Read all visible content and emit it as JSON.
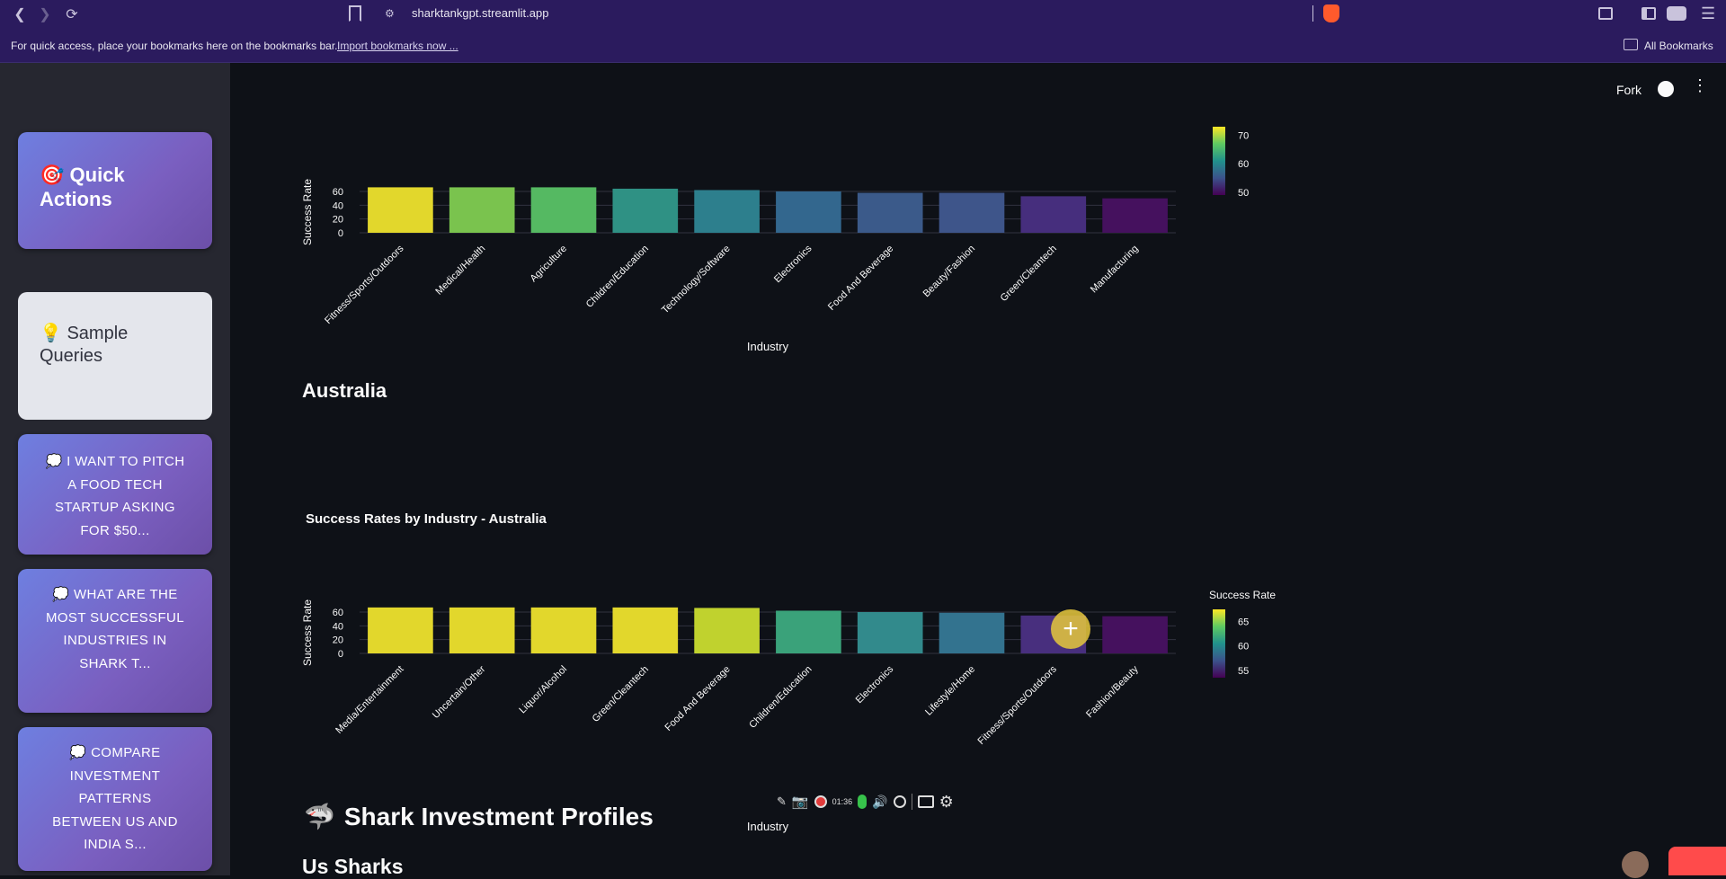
{
  "browser": {
    "url": "sharktankgpt.streamlit.app",
    "bookmarks_hint": "For quick access, place your bookmarks here on the bookmarks bar.",
    "import_link": "Import bookmarks now ...",
    "all_bookmarks": "All Bookmarks"
  },
  "app_header": {
    "fork": "Fork"
  },
  "sidebar": {
    "quick_actions": {
      "icon": "🎯",
      "label": "Quick Actions"
    },
    "sample_queries": {
      "icon": "💡",
      "label": "Sample Queries"
    },
    "queries": [
      {
        "icon": "💭",
        "text": "I WANT TO PITCH A FOOD TECH STARTUP ASKING FOR $50..."
      },
      {
        "icon": "💭",
        "text": "WHAT ARE THE MOST SUCCESSFUL INDUSTRIES IN SHARK T..."
      },
      {
        "icon": "💭",
        "text": "COMPARE INVESTMENT PATTERNS BETWEEN US AND INDIA S..."
      }
    ]
  },
  "sections": {
    "australia_heading": "Australia",
    "shark_profiles_icon": "🦈",
    "shark_profiles_heading": "Shark Investment Profiles",
    "us_sharks_heading": "Us Sharks"
  },
  "recorder": {
    "time": "01:36"
  },
  "chart_data": [
    {
      "type": "bar",
      "title": "",
      "xlabel": "Industry",
      "ylabel": "Success Rate",
      "categories": [
        "Fitness/Sports/Outdoors",
        "Medical/Health",
        "Agriculture",
        "Children/Education",
        "Technology/Software",
        "Electronics",
        "Food And Beverage",
        "Beauty/Fashion",
        "Green/Cleantech",
        "Manufacturing"
      ],
      "values": [
        66,
        66,
        66,
        64,
        62,
        60,
        58,
        58,
        53,
        50
      ],
      "yticks": [
        0,
        20,
        40,
        60
      ],
      "ylim": [
        0,
        70
      ],
      "colorbar": {
        "title": "",
        "ticks": [
          50,
          60,
          70
        ],
        "range": [
          49,
          73
        ]
      },
      "colors": [
        "#e2d72c",
        "#7ac34e",
        "#55b962",
        "#2f9184",
        "#2d7f8d",
        "#33678e",
        "#3b5a8a",
        "#3e558a",
        "#462e7d",
        "#45115e"
      ]
    },
    {
      "type": "bar",
      "title": "Success Rates by Industry - Australia",
      "xlabel": "Industry",
      "ylabel": "Success Rate",
      "categories": [
        "Media/Entertainment",
        "Uncertain/Other",
        "Liquor/Alcohol",
        "Green/Cleantech",
        "Food And Beverage",
        "Children/Education",
        "Electronics",
        "Lifestyle/Home",
        "Fitness/Sports/Outdoors",
        "Fashion/Beauty"
      ],
      "values": [
        66.7,
        66.7,
        66.7,
        66.7,
        66,
        62,
        60,
        59,
        55,
        54
      ],
      "yticks": [
        0,
        20,
        40,
        60
      ],
      "ylim": [
        0,
        70
      ],
      "colorbar": {
        "title": "Success Rate",
        "ticks": [
          55,
          60,
          65
        ],
        "range": [
          53.5,
          67.5
        ]
      },
      "colors": [
        "#e2d72c",
        "#e2d72c",
        "#e2d72c",
        "#e2d72c",
        "#c0d22e",
        "#3aa27a",
        "#328a8c",
        "#33738f",
        "#482f7e",
        "#45115e"
      ]
    }
  ]
}
